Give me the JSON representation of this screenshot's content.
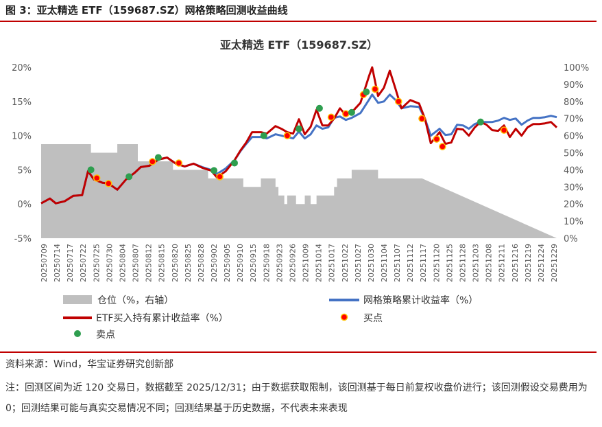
{
  "figure": {
    "title": "图 3：亚太精选 ETF（159687.SZ）网格策略回测收益曲线",
    "source": "资料来源：Wind，华宝证券研究创新部",
    "note": "注：回测区间为近 120 交易日，数据截至 2025/12/31；由于数据获取限制，该回测基于每日前复权收盘价进行；该回测假设交易费用为 0；回测结果可能与真实交易情况不同；回测结果基于历史数据，不代表未来表现"
  },
  "colors": {
    "accent_rule": "#c00000",
    "position_area": "#bfbfbf",
    "strategy_line": "#4472c4",
    "etf_line": "#c00000",
    "buy_fill": "#ff0000",
    "buy_stroke": "#ffc000",
    "sell_fill": "#2e9e4f"
  },
  "chart_data": {
    "type": "line",
    "title": "亚太精选 ETF（159687.SZ）",
    "y_left": {
      "min": -5,
      "max": 20,
      "ticks": [
        "-5%",
        "0%",
        "5%",
        "10%",
        "15%",
        "20%"
      ]
    },
    "y_right": {
      "min": 0,
      "max": 100,
      "ticks": [
        "0%",
        "10%",
        "20%",
        "30%",
        "40%",
        "50%",
        "60%",
        "70%",
        "80%",
        "90%",
        "100%"
      ]
    },
    "x_tick_labels": [
      "20250709",
      "20250714",
      "20250717",
      "20250722",
      "20250725",
      "20250730",
      "20250804",
      "20250807",
      "20250812",
      "20250815",
      "20250820",
      "20250825",
      "20250828",
      "20250902",
      "20250905",
      "20250910",
      "20250915",
      "20250918",
      "20250923",
      "20250926",
      "20251009",
      "20251014",
      "20251017",
      "20251022",
      "20251027",
      "20251030",
      "20251104",
      "20251107",
      "20251112",
      "20251117",
      "20251120",
      "20251125",
      "20251128",
      "20251203",
      "20251208",
      "20251211",
      "20251216",
      "20251219",
      "20251224",
      "20251229"
    ],
    "n_points": 120,
    "legend": {
      "position": "bottom",
      "items": [
        "仓位（%，右轴）",
        "网格策略累计收益率（%）",
        "ETF买入持有累计收益率（%）",
        "买点",
        "卖点"
      ]
    },
    "position_anchors": [
      [
        0,
        55
      ],
      [
        16,
        55
      ],
      [
        17,
        50
      ],
      [
        25,
        50
      ],
      [
        26,
        55
      ],
      [
        32,
        55
      ],
      [
        33,
        45
      ],
      [
        44,
        45
      ],
      [
        45,
        40
      ],
      [
        56,
        40
      ],
      [
        57,
        35
      ],
      [
        68,
        35
      ],
      [
        69,
        30
      ],
      [
        74,
        30
      ],
      [
        75,
        35
      ],
      [
        79,
        35
      ],
      [
        80,
        30
      ],
      [
        81,
        25
      ],
      [
        83,
        20
      ],
      [
        84,
        25
      ],
      [
        86,
        25
      ],
      [
        87,
        20
      ],
      [
        89,
        20
      ],
      [
        90,
        25
      ],
      [
        92,
        20
      ],
      [
        93,
        20
      ],
      [
        94,
        25
      ],
      [
        99,
        25
      ],
      [
        100,
        30
      ],
      [
        101,
        35
      ],
      [
        104,
        35
      ],
      [
        106,
        40
      ],
      [
        114,
        40
      ],
      [
        115,
        35
      ],
      [
        130,
        35
      ]
    ],
    "etf_anchors": [
      [
        0,
        0.1
      ],
      [
        3,
        0.8
      ],
      [
        5,
        0.1
      ],
      [
        8,
        0.4
      ],
      [
        11,
        1.2
      ],
      [
        14,
        1.3
      ],
      [
        16,
        4.8
      ],
      [
        18,
        3.6
      ],
      [
        21,
        3.1
      ],
      [
        23,
        3.0
      ],
      [
        26,
        2.1
      ],
      [
        29,
        3.6
      ],
      [
        32,
        4.6
      ],
      [
        34,
        5.4
      ],
      [
        37,
        5.6
      ],
      [
        40,
        6.5
      ],
      [
        43,
        6.8
      ],
      [
        46,
        5.9
      ],
      [
        49,
        5.5
      ],
      [
        52,
        5.9
      ],
      [
        55,
        5.3
      ],
      [
        58,
        4.9
      ],
      [
        60,
        3.9
      ],
      [
        63,
        4.8
      ],
      [
        66,
        6.4
      ],
      [
        68,
        7.8
      ],
      [
        70,
        9.0
      ],
      [
        72,
        10.5
      ],
      [
        75,
        10.5
      ],
      [
        77,
        10.3
      ],
      [
        80,
        11.4
      ],
      [
        82,
        11.0
      ],
      [
        84,
        10.5
      ],
      [
        86,
        10.3
      ],
      [
        88,
        12.4
      ],
      [
        90,
        10.2
      ],
      [
        92,
        11.3
      ],
      [
        94,
        13.8
      ],
      [
        96,
        11.5
      ],
      [
        98,
        11.5
      ],
      [
        100,
        12.5
      ],
      [
        102,
        14.0
      ],
      [
        104,
        13.0
      ],
      [
        106,
        13.4
      ],
      [
        109,
        14.8
      ],
      [
        112,
        18.8
      ],
      [
        113,
        20.0
      ],
      [
        115,
        15.8
      ],
      [
        117,
        17.0
      ],
      [
        119,
        19.5
      ],
      [
        121,
        16.8
      ],
      [
        123,
        14.0
      ],
      [
        126,
        15.2
      ],
      [
        129,
        14.7
      ],
      [
        131,
        12.5
      ],
      [
        133,
        8.9
      ],
      [
        136,
        10.5
      ],
      [
        138,
        8.8
      ],
      [
        140,
        9.0
      ],
      [
        142,
        11.0
      ],
      [
        144,
        10.9
      ],
      [
        146,
        10.0
      ],
      [
        148,
        11.2
      ],
      [
        150,
        12.0
      ],
      [
        152,
        11.6
      ],
      [
        154,
        10.8
      ],
      [
        156,
        10.7
      ],
      [
        158,
        11.5
      ],
      [
        160,
        9.8
      ],
      [
        162,
        11.0
      ],
      [
        164,
        10.0
      ],
      [
        166,
        11.2
      ],
      [
        168,
        11.7
      ],
      [
        170,
        11.7
      ],
      [
        172,
        11.8
      ],
      [
        174,
        12.0
      ],
      [
        176,
        11.2
      ]
    ],
    "strategy_anchors": [
      [
        0,
        0.1
      ],
      [
        3,
        0.8
      ],
      [
        5,
        0.1
      ],
      [
        8,
        0.4
      ],
      [
        11,
        1.2
      ],
      [
        14,
        1.3
      ],
      [
        16,
        4.8
      ],
      [
        18,
        3.6
      ],
      [
        21,
        3.1
      ],
      [
        23,
        3.0
      ],
      [
        26,
        2.1
      ],
      [
        29,
        3.6
      ],
      [
        32,
        4.6
      ],
      [
        34,
        5.4
      ],
      [
        37,
        5.6
      ],
      [
        40,
        6.5
      ],
      [
        43,
        6.8
      ],
      [
        46,
        5.9
      ],
      [
        49,
        5.5
      ],
      [
        52,
        5.9
      ],
      [
        55,
        5.4
      ],
      [
        58,
        5.0
      ],
      [
        60,
        4.4
      ],
      [
        63,
        5.2
      ],
      [
        66,
        6.4
      ],
      [
        68,
        7.7
      ],
      [
        70,
        8.8
      ],
      [
        72,
        9.8
      ],
      [
        75,
        9.8
      ],
      [
        77,
        9.6
      ],
      [
        80,
        10.2
      ],
      [
        82,
        10.0
      ],
      [
        84,
        9.8
      ],
      [
        86,
        9.6
      ],
      [
        88,
        10.6
      ],
      [
        90,
        9.6
      ],
      [
        92,
        10.2
      ],
      [
        94,
        11.5
      ],
      [
        96,
        11.0
      ],
      [
        98,
        11.2
      ],
      [
        100,
        12.6
      ],
      [
        102,
        12.8
      ],
      [
        104,
        12.3
      ],
      [
        106,
        12.6
      ],
      [
        109,
        13.3
      ],
      [
        112,
        15.3
      ],
      [
        113,
        16.0
      ],
      [
        115,
        14.8
      ],
      [
        117,
        15.0
      ],
      [
        119,
        16.0
      ],
      [
        121,
        15.2
      ],
      [
        123,
        14.0
      ],
      [
        126,
        14.3
      ],
      [
        129,
        14.2
      ],
      [
        131,
        12.5
      ],
      [
        133,
        10.0
      ],
      [
        136,
        11.0
      ],
      [
        138,
        10.1
      ],
      [
        140,
        10.2
      ],
      [
        142,
        11.6
      ],
      [
        144,
        11.5
      ],
      [
        146,
        11.0
      ],
      [
        148,
        11.7
      ],
      [
        150,
        12.0
      ],
      [
        152,
        12.0
      ],
      [
        154,
        12.0
      ],
      [
        156,
        12.2
      ],
      [
        158,
        12.6
      ],
      [
        160,
        12.3
      ],
      [
        162,
        12.5
      ],
      [
        164,
        11.6
      ],
      [
        166,
        12.2
      ],
      [
        168,
        12.6
      ],
      [
        170,
        12.6
      ],
      [
        172,
        12.7
      ],
      [
        174,
        12.9
      ],
      [
        176,
        12.7
      ]
    ],
    "sell_points": [
      [
        17,
        5.0
      ],
      [
        30,
        4.0
      ],
      [
        40,
        6.8
      ],
      [
        59,
        4.9
      ],
      [
        66,
        6.0
      ],
      [
        76,
        10.0
      ],
      [
        88,
        11.0
      ],
      [
        95,
        14.0
      ],
      [
        106,
        13.4
      ],
      [
        111,
        16.4
      ],
      [
        150,
        12.0
      ]
    ],
    "buy_points": [
      [
        19,
        3.8
      ],
      [
        23,
        3.0
      ],
      [
        38,
        6.2
      ],
      [
        47,
        6.0
      ],
      [
        61,
        4.0
      ],
      [
        84,
        10.0
      ],
      [
        99,
        12.7
      ],
      [
        104,
        13.2
      ],
      [
        110,
        16.0
      ],
      [
        114,
        16.8
      ],
      [
        122,
        15.0
      ],
      [
        130,
        12.5
      ],
      [
        135,
        9.5
      ],
      [
        137,
        8.4
      ],
      [
        158,
        10.8
      ]
    ]
  }
}
